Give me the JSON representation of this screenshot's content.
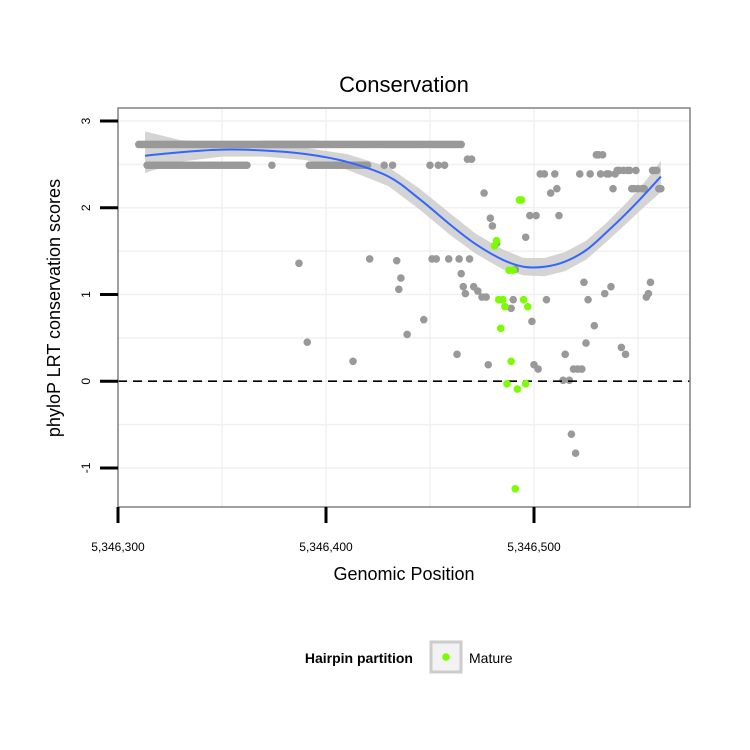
{
  "chart_data": {
    "type": "scatter",
    "title": "Conservation",
    "xlabel": "Genomic Position",
    "ylabel": "phyloP LRT conservation scores",
    "xlim": [
      5346300,
      5346575
    ],
    "ylim": [
      -1.45,
      3.15
    ],
    "x_ticks": [
      {
        "value": 5346300,
        "label": "5,346,300"
      },
      {
        "value": 5346400,
        "label": "5,346,400"
      },
      {
        "value": 5346500,
        "label": "5,346,500"
      }
    ],
    "y_ticks": [
      {
        "value": -1,
        "label": "-1"
      },
      {
        "value": 0,
        "label": "0"
      },
      {
        "value": 1,
        "label": "1"
      },
      {
        "value": 2,
        "label": "2"
      },
      {
        "value": 3,
        "label": "3"
      }
    ],
    "reference_line": {
      "y": 0,
      "style": "dashed"
    },
    "grid": true,
    "colors": {
      "other_points": "#999999",
      "mature_points": "#7CFC00",
      "smooth_line": "#3366FF",
      "confidence_band": "#CCCCCC",
      "panel_border": "#808080",
      "grid": "#F0F0F0"
    },
    "other_points": {
      "segments": [
        {
          "from": 5346310,
          "to": 5346465,
          "step": 1,
          "y": 2.73
        },
        {
          "from": 5346314,
          "to": 5346362,
          "step": 1,
          "y": 2.49
        },
        {
          "from": 5346370,
          "to": 5346395,
          "step": 1,
          "y": 2.73
        },
        {
          "from": 5346392,
          "to": 5346420,
          "step": 1,
          "y": 2.49
        }
      ],
      "points": [
        [
          5346374,
          2.49
        ],
        [
          5346428,
          2.49
        ],
        [
          5346432,
          2.49
        ],
        [
          5346450,
          2.49
        ],
        [
          5346454,
          2.49
        ],
        [
          5346457,
          2.49
        ],
        [
          5346468,
          2.56
        ],
        [
          5346470,
          2.56
        ],
        [
          5346387,
          1.36
        ],
        [
          5346391,
          0.45
        ],
        [
          5346413,
          0.23
        ],
        [
          5346421,
          1.41
        ],
        [
          5346434,
          1.39
        ],
        [
          5346435,
          1.06
        ],
        [
          5346436,
          1.19
        ],
        [
          5346439,
          0.54
        ],
        [
          5346447,
          0.71
        ],
        [
          5346451,
          1.41
        ],
        [
          5346453,
          1.41
        ],
        [
          5346459,
          1.41
        ],
        [
          5346463,
          0.31
        ],
        [
          5346464,
          1.41
        ],
        [
          5346465,
          1.24
        ],
        [
          5346466,
          1.09
        ],
        [
          5346467,
          1.01
        ],
        [
          5346469,
          1.41
        ],
        [
          5346471,
          1.09
        ],
        [
          5346473,
          1.04
        ],
        [
          5346475,
          0.97
        ],
        [
          5346476,
          2.17
        ],
        [
          5346477,
          0.97
        ],
        [
          5346478,
          0.19
        ],
        [
          5346479,
          1.88
        ],
        [
          5346480,
          1.79
        ],
        [
          5346482,
          1.59
        ],
        [
          5346489,
          0.84
        ],
        [
          5346490,
          0.94
        ],
        [
          5346491,
          1.29
        ],
        [
          5346496,
          1.66
        ],
        [
          5346498,
          1.91
        ],
        [
          5346499,
          0.69
        ],
        [
          5346500,
          0.19
        ],
        [
          5346501,
          1.91
        ],
        [
          5346502,
          0.14
        ],
        [
          5346503,
          2.39
        ],
        [
          5346505,
          2.39
        ],
        [
          5346506,
          0.94
        ],
        [
          5346508,
          2.17
        ],
        [
          5346510,
          2.39
        ],
        [
          5346511,
          2.22
        ],
        [
          5346512,
          1.91
        ],
        [
          5346514,
          0.01
        ],
        [
          5346515,
          0.31
        ],
        [
          5346517,
          0.01
        ],
        [
          5346518,
          -0.61
        ],
        [
          5346519,
          0.14
        ],
        [
          5346520,
          -0.83
        ],
        [
          5346521,
          0.14
        ],
        [
          5346522,
          2.39
        ],
        [
          5346523,
          0.14
        ],
        [
          5346524,
          1.14
        ],
        [
          5346525,
          0.44
        ],
        [
          5346526,
          0.94
        ],
        [
          5346527,
          2.39
        ],
        [
          5346529,
          0.64
        ],
        [
          5346530,
          2.61
        ],
        [
          5346531,
          2.61
        ],
        [
          5346532,
          2.39
        ],
        [
          5346533,
          2.61
        ],
        [
          5346534,
          1.01
        ],
        [
          5346535,
          2.39
        ],
        [
          5346536,
          2.39
        ],
        [
          5346537,
          1.09
        ],
        [
          5346538,
          2.22
        ],
        [
          5346539,
          2.39
        ],
        [
          5346540,
          2.43
        ],
        [
          5346541,
          2.43
        ],
        [
          5346542,
          0.39
        ],
        [
          5346543,
          2.43
        ],
        [
          5346544,
          0.31
        ],
        [
          5346545,
          2.43
        ],
        [
          5346546,
          2.43
        ],
        [
          5346547,
          2.22
        ],
        [
          5346548,
          2.22
        ],
        [
          5346549,
          2.43
        ],
        [
          5346550,
          2.22
        ],
        [
          5346552,
          2.22
        ],
        [
          5346553,
          2.22
        ],
        [
          5346554,
          0.97
        ],
        [
          5346555,
          1.01
        ],
        [
          5346556,
          1.14
        ],
        [
          5346557,
          2.43
        ],
        [
          5346558,
          2.43
        ],
        [
          5346559,
          2.43
        ],
        [
          5346560,
          2.22
        ],
        [
          5346561,
          2.22
        ]
      ]
    },
    "series": [
      {
        "name": "Mature",
        "points": [
          [
            5346481,
            1.56
          ],
          [
            5346482,
            1.62
          ],
          [
            5346483,
            0.94
          ],
          [
            5346484,
            0.61
          ],
          [
            5346485,
            0.94
          ],
          [
            5346486,
            0.86
          ],
          [
            5346487,
            -0.03
          ],
          [
            5346488,
            1.28
          ],
          [
            5346489,
            0.23
          ],
          [
            5346490,
            1.28
          ],
          [
            5346491,
            -1.24
          ],
          [
            5346492,
            -0.09
          ],
          [
            5346493,
            2.09
          ],
          [
            5346494,
            2.09
          ],
          [
            5346495,
            0.94
          ],
          [
            5346496,
            -0.03
          ],
          [
            5346497,
            0.86
          ]
        ]
      }
    ],
    "smooth_fit": {
      "method": "loess",
      "fit": [
        [
          5346313,
          2.6
        ],
        [
          5346330,
          2.64
        ],
        [
          5346350,
          2.67
        ],
        [
          5346370,
          2.66
        ],
        [
          5346390,
          2.62
        ],
        [
          5346410,
          2.53
        ],
        [
          5346430,
          2.36
        ],
        [
          5346445,
          2.1
        ],
        [
          5346460,
          1.8
        ],
        [
          5346472,
          1.58
        ],
        [
          5346485,
          1.4
        ],
        [
          5346495,
          1.32
        ],
        [
          5346505,
          1.32
        ],
        [
          5346515,
          1.38
        ],
        [
          5346525,
          1.51
        ],
        [
          5346535,
          1.72
        ],
        [
          5346545,
          1.95
        ],
        [
          5346553,
          2.15
        ],
        [
          5346561,
          2.36
        ]
      ],
      "lower": [
        [
          5346313,
          2.4
        ],
        [
          5346330,
          2.53
        ],
        [
          5346350,
          2.59
        ],
        [
          5346370,
          2.59
        ],
        [
          5346390,
          2.55
        ],
        [
          5346410,
          2.44
        ],
        [
          5346430,
          2.25
        ],
        [
          5346445,
          1.98
        ],
        [
          5346460,
          1.68
        ],
        [
          5346472,
          1.47
        ],
        [
          5346485,
          1.29
        ],
        [
          5346495,
          1.22
        ],
        [
          5346505,
          1.21
        ],
        [
          5346515,
          1.27
        ],
        [
          5346525,
          1.4
        ],
        [
          5346535,
          1.61
        ],
        [
          5346545,
          1.83
        ],
        [
          5346553,
          2.01
        ],
        [
          5346561,
          2.18
        ]
      ],
      "upper": [
        [
          5346313,
          2.88
        ],
        [
          5346330,
          2.78
        ],
        [
          5346350,
          2.75
        ],
        [
          5346370,
          2.73
        ],
        [
          5346390,
          2.69
        ],
        [
          5346410,
          2.62
        ],
        [
          5346430,
          2.47
        ],
        [
          5346445,
          2.22
        ],
        [
          5346460,
          1.93
        ],
        [
          5346472,
          1.7
        ],
        [
          5346485,
          1.52
        ],
        [
          5346495,
          1.42
        ],
        [
          5346505,
          1.42
        ],
        [
          5346515,
          1.49
        ],
        [
          5346525,
          1.62
        ],
        [
          5346535,
          1.83
        ],
        [
          5346545,
          2.07
        ],
        [
          5346553,
          2.29
        ],
        [
          5346561,
          2.54
        ]
      ]
    },
    "legend": {
      "title": "Hairpin partition",
      "placement": "bottom",
      "items": [
        {
          "label": "Mature",
          "color": "#7CFC00"
        }
      ]
    }
  }
}
